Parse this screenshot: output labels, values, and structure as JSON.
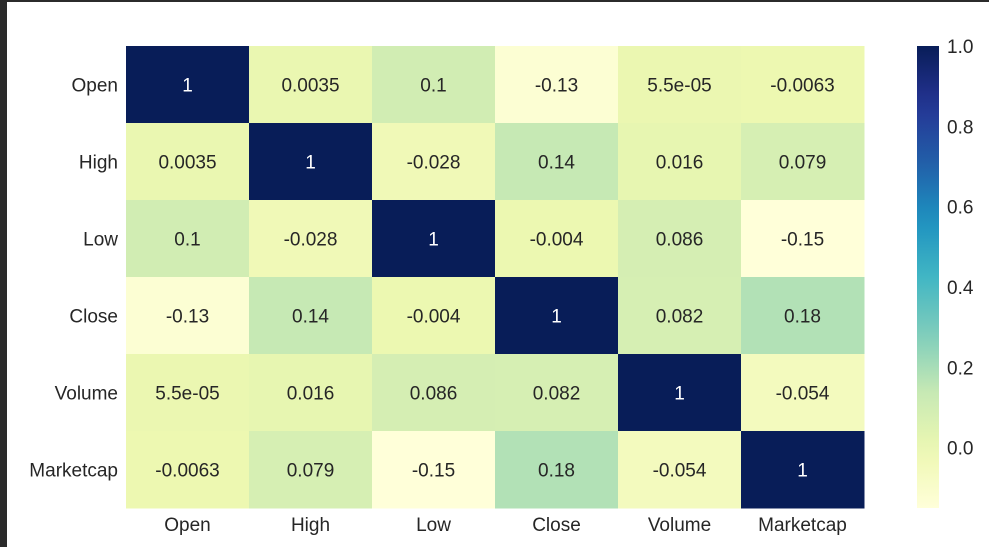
{
  "chart_data": {
    "type": "heatmap",
    "title": "",
    "xlabel": "",
    "ylabel": "",
    "row_labels": [
      "Open",
      "High",
      "Low",
      "Close",
      "Volume",
      "Marketcap"
    ],
    "col_labels": [
      "Open",
      "High",
      "Low",
      "Close",
      "Volume",
      "Marketcap"
    ],
    "values": [
      [
        1,
        0.0035,
        0.1,
        -0.13,
        5.5e-05,
        -0.0063
      ],
      [
        0.0035,
        1,
        -0.028,
        0.14,
        0.016,
        0.079
      ],
      [
        0.1,
        -0.028,
        1,
        -0.004,
        0.086,
        -0.15
      ],
      [
        -0.13,
        0.14,
        -0.004,
        1,
        0.082,
        0.18
      ],
      [
        5.5e-05,
        0.016,
        0.086,
        0.082,
        1,
        -0.054
      ],
      [
        -0.0063,
        0.079,
        -0.15,
        0.18,
        -0.054,
        1
      ]
    ],
    "annotations": [
      [
        "1",
        "0.0035",
        "0.1",
        "-0.13",
        "5.5e-05",
        "-0.0063"
      ],
      [
        "0.0035",
        "1",
        "-0.028",
        "0.14",
        "0.016",
        "0.079"
      ],
      [
        "0.1",
        "-0.028",
        "1",
        "-0.004",
        "0.086",
        "-0.15"
      ],
      [
        "-0.13",
        "0.14",
        "-0.004",
        "1",
        "0.082",
        "0.18"
      ],
      [
        "5.5e-05",
        "0.016",
        "0.086",
        "0.082",
        "1",
        "-0.054"
      ],
      [
        "-0.0063",
        "0.079",
        "-0.15",
        "0.18",
        "-0.054",
        "1"
      ]
    ],
    "colormap": "YlGnBu",
    "vmin": -0.15,
    "vmax": 1.0,
    "colorbar_ticks": [
      "0.0",
      "0.2",
      "0.4",
      "0.6",
      "0.8",
      "1.0"
    ],
    "colorbar_tick_values": [
      0.0,
      0.2,
      0.4,
      0.6,
      0.8,
      1.0
    ],
    "annotation_color_light": "#ffffff",
    "annotation_color_dark": "#262626"
  }
}
